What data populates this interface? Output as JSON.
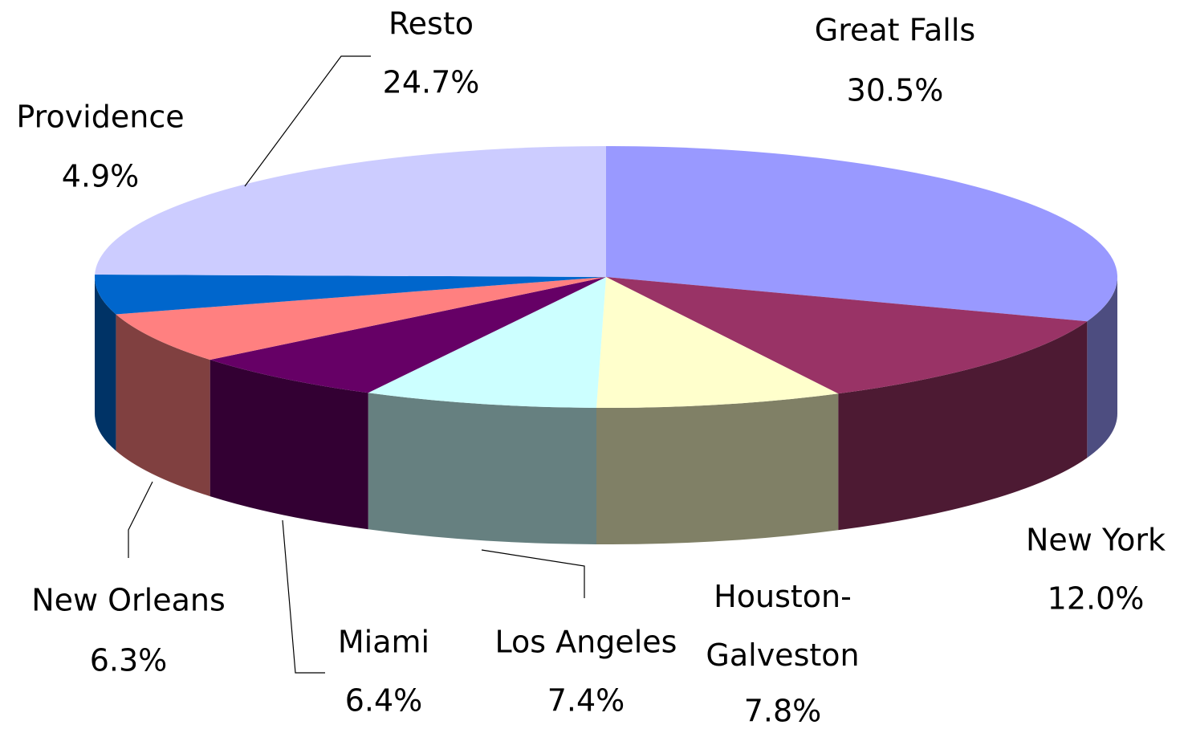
{
  "chart_data": {
    "type": "pie",
    "categories": [
      "Great Falls",
      "New York",
      "Houston-Galveston",
      "Los Angeles",
      "Miami",
      "New Orleans",
      "Providence",
      "Resto"
    ],
    "values": [
      30.5,
      12.0,
      7.8,
      7.4,
      6.4,
      6.3,
      4.9,
      24.7
    ],
    "value_labels": [
      "30.5%",
      "12.0%",
      "7.8%",
      "7.4%",
      "6.4%",
      "6.3%",
      "4.9%",
      "24.7%"
    ],
    "colors": [
      "#9999ff",
      "#993366",
      "#ffffcc",
      "#ccffff",
      "#660066",
      "#ff8080",
      "#0066cc",
      "#ccccff"
    ]
  }
}
